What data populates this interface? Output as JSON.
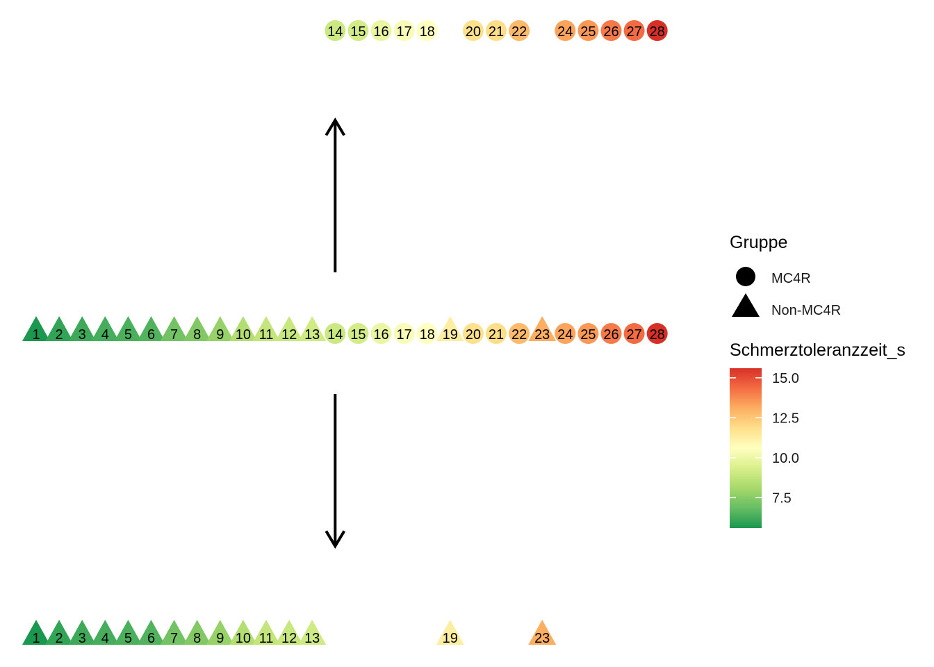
{
  "chart_data": {
    "type": "scatter",
    "title": "",
    "xlabel": "",
    "ylabel": "",
    "grid": false,
    "legend_position": "right",
    "rows": [
      {
        "name": "top",
        "points": [
          {
            "id": 14,
            "group": "MC4R",
            "value": 9.0
          },
          {
            "id": 15,
            "group": "MC4R",
            "value": 9.2
          },
          {
            "id": 16,
            "group": "MC4R",
            "value": 9.9
          },
          {
            "id": 17,
            "group": "MC4R",
            "value": 10.4
          },
          {
            "id": 18,
            "group": "MC4R",
            "value": 10.6
          },
          {
            "id": 20,
            "group": "MC4R",
            "value": 11.8
          },
          {
            "id": 21,
            "group": "MC4R",
            "value": 11.9
          },
          {
            "id": 22,
            "group": "MC4R",
            "value": 12.8
          },
          {
            "id": 24,
            "group": "MC4R",
            "value": 13.3
          },
          {
            "id": 25,
            "group": "MC4R",
            "value": 13.5
          },
          {
            "id": 26,
            "group": "MC4R",
            "value": 14.1
          },
          {
            "id": 27,
            "group": "MC4R",
            "value": 14.4
          },
          {
            "id": 28,
            "group": "MC4R",
            "value": 15.6
          }
        ]
      },
      {
        "name": "middle",
        "points": [
          {
            "id": 1,
            "group": "Non-MC4R",
            "value": 5.6
          },
          {
            "id": 2,
            "group": "Non-MC4R",
            "value": 6.0
          },
          {
            "id": 3,
            "group": "Non-MC4R",
            "value": 6.2
          },
          {
            "id": 4,
            "group": "Non-MC4R",
            "value": 6.3
          },
          {
            "id": 5,
            "group": "Non-MC4R",
            "value": 6.4
          },
          {
            "id": 6,
            "group": "Non-MC4R",
            "value": 6.5
          },
          {
            "id": 7,
            "group": "Non-MC4R",
            "value": 7.1
          },
          {
            "id": 8,
            "group": "Non-MC4R",
            "value": 7.4
          },
          {
            "id": 9,
            "group": "Non-MC4R",
            "value": 7.8
          },
          {
            "id": 10,
            "group": "Non-MC4R",
            "value": 8.4
          },
          {
            "id": 11,
            "group": "Non-MC4R",
            "value": 8.8
          },
          {
            "id": 12,
            "group": "Non-MC4R",
            "value": 8.9
          },
          {
            "id": 13,
            "group": "Non-MC4R",
            "value": 9.1
          },
          {
            "id": 14,
            "group": "MC4R",
            "value": 9.0
          },
          {
            "id": 15,
            "group": "MC4R",
            "value": 9.2
          },
          {
            "id": 16,
            "group": "MC4R",
            "value": 9.9
          },
          {
            "id": 17,
            "group": "MC4R",
            "value": 10.4
          },
          {
            "id": 18,
            "group": "MC4R",
            "value": 10.6
          },
          {
            "id": 19,
            "group": "Non-MC4R",
            "value": 11.3
          },
          {
            "id": 20,
            "group": "MC4R",
            "value": 11.8
          },
          {
            "id": 21,
            "group": "MC4R",
            "value": 11.9
          },
          {
            "id": 22,
            "group": "MC4R",
            "value": 12.8
          },
          {
            "id": 23,
            "group": "Non-MC4R",
            "value": 13.1
          },
          {
            "id": 24,
            "group": "MC4R",
            "value": 13.3
          },
          {
            "id": 25,
            "group": "MC4R",
            "value": 13.5
          },
          {
            "id": 26,
            "group": "MC4R",
            "value": 14.1
          },
          {
            "id": 27,
            "group": "MC4R",
            "value": 14.4
          },
          {
            "id": 28,
            "group": "MC4R",
            "value": 15.6
          }
        ]
      },
      {
        "name": "bottom",
        "points": [
          {
            "id": 1,
            "group": "Non-MC4R",
            "value": 5.6
          },
          {
            "id": 2,
            "group": "Non-MC4R",
            "value": 6.0
          },
          {
            "id": 3,
            "group": "Non-MC4R",
            "value": 6.2
          },
          {
            "id": 4,
            "group": "Non-MC4R",
            "value": 6.3
          },
          {
            "id": 5,
            "group": "Non-MC4R",
            "value": 6.4
          },
          {
            "id": 6,
            "group": "Non-MC4R",
            "value": 6.5
          },
          {
            "id": 7,
            "group": "Non-MC4R",
            "value": 7.1
          },
          {
            "id": 8,
            "group": "Non-MC4R",
            "value": 7.4
          },
          {
            "id": 9,
            "group": "Non-MC4R",
            "value": 7.8
          },
          {
            "id": 10,
            "group": "Non-MC4R",
            "value": 8.4
          },
          {
            "id": 11,
            "group": "Non-MC4R",
            "value": 8.8
          },
          {
            "id": 12,
            "group": "Non-MC4R",
            "value": 8.9
          },
          {
            "id": 13,
            "group": "Non-MC4R",
            "value": 9.1
          },
          {
            "id": 19,
            "group": "Non-MC4R",
            "value": 11.3
          },
          {
            "id": 23,
            "group": "Non-MC4R",
            "value": 13.1
          }
        ]
      }
    ],
    "arrows": [
      {
        "from": "middle",
        "to": "top",
        "at_id": 14
      },
      {
        "from": "middle",
        "to": "bottom",
        "at_id": 14
      }
    ],
    "legend": {
      "shape_title": "Gruppe",
      "shapes": [
        {
          "label": "MC4R",
          "shape": "circle"
        },
        {
          "label": "Non-MC4R",
          "shape": "triangle"
        }
      ],
      "color_title": "Schmerztoleranzzeit_s",
      "color_range": [
        5.6,
        15.6
      ],
      "color_ticks": [
        15.0,
        12.5,
        10.0,
        7.5
      ],
      "color_tick_labels": [
        "15.0",
        "12.5",
        "10.0",
        "7.5"
      ],
      "palette": [
        "#1a9850",
        "#66bd63",
        "#a6d96a",
        "#d9ef8b",
        "#ffffbf",
        "#fee08b",
        "#fdae61",
        "#f46d43",
        "#d73027"
      ]
    }
  }
}
